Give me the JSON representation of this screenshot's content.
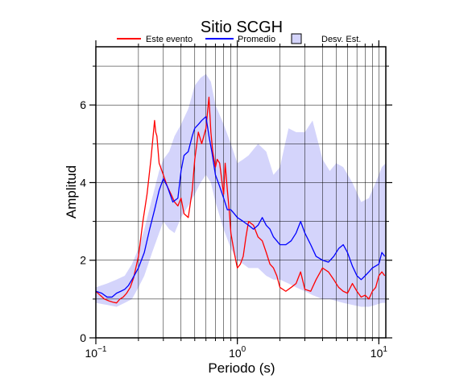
{
  "chart_data": {
    "type": "line",
    "title": "Sitio SCGH",
    "xlabel": "Periodo (s)",
    "ylabel": "Amplitud",
    "x_scale": "log",
    "xlim": [
      0.1,
      11.2
    ],
    "ylim": [
      0,
      7.5
    ],
    "grid": true,
    "legend_position": "top",
    "x_ticks": [
      {
        "value": 0.1,
        "base": "10",
        "exp": "−1"
      },
      {
        "value": 1,
        "label": "10",
        "exp": "0"
      },
      {
        "value": 10,
        "label": "10",
        "exp": "1"
      }
    ],
    "y_ticks": [
      0,
      2,
      4,
      6
    ],
    "legend": [
      {
        "label": "Este evento",
        "kind": "line",
        "color": "#ff0000"
      },
      {
        "label": "Promedio",
        "kind": "line",
        "color": "#0000ff"
      },
      {
        "label": "Desv. Est.",
        "kind": "box",
        "color": "#d4d4fb"
      }
    ],
    "series": [
      {
        "name": "Este evento",
        "color": "#ff0000",
        "x": [
          0.1,
          0.107,
          0.115,
          0.124,
          0.132,
          0.14,
          0.148,
          0.156,
          0.165,
          0.175,
          0.185,
          0.2,
          0.215,
          0.23,
          0.245,
          0.26,
          0.265,
          0.27,
          0.28,
          0.3,
          0.32,
          0.34,
          0.36,
          0.38,
          0.4,
          0.42,
          0.45,
          0.48,
          0.5,
          0.53,
          0.56,
          0.6,
          0.63,
          0.65,
          0.67,
          0.7,
          0.72,
          0.75,
          0.78,
          0.8,
          0.82,
          0.85,
          0.88,
          0.9,
          0.95,
          1.0,
          1.05,
          1.1,
          1.15,
          1.2,
          1.3,
          1.4,
          1.5,
          1.6,
          1.7,
          1.8,
          1.9,
          2.0,
          2.2,
          2.4,
          2.6,
          2.8,
          3.0,
          3.3,
          3.6,
          4.0,
          4.4,
          4.8,
          5.2,
          5.6,
          6.0,
          6.5,
          7.0,
          7.5,
          8.0,
          8.5,
          9.0,
          9.5,
          10.0,
          10.5,
          11.0
        ],
        "values": [
          1.2,
          1.1,
          1.0,
          0.95,
          0.92,
          0.9,
          1.0,
          1.05,
          1.15,
          1.3,
          1.55,
          2.1,
          3.0,
          3.7,
          4.6,
          5.6,
          5.3,
          5.2,
          4.5,
          4.2,
          3.9,
          3.7,
          3.5,
          3.4,
          3.6,
          3.2,
          3.1,
          3.8,
          4.6,
          5.3,
          5.0,
          5.4,
          6.2,
          5.3,
          4.8,
          4.4,
          4.6,
          4.5,
          4.0,
          3.7,
          4.5,
          3.8,
          3.2,
          2.7,
          2.2,
          1.8,
          1.9,
          2.1,
          2.6,
          3.0,
          2.9,
          2.6,
          2.5,
          2.2,
          1.9,
          1.8,
          1.6,
          1.3,
          1.2,
          1.3,
          1.4,
          1.7,
          1.25,
          1.2,
          1.5,
          1.8,
          1.7,
          1.5,
          1.3,
          1.2,
          1.15,
          1.4,
          1.2,
          1.05,
          1.1,
          1.0,
          1.2,
          1.3,
          1.6,
          1.7,
          1.6
        ]
      },
      {
        "name": "Promedio",
        "color": "#0000ff",
        "x": [
          0.1,
          0.11,
          0.12,
          0.13,
          0.14,
          0.15,
          0.16,
          0.17,
          0.18,
          0.2,
          0.22,
          0.24,
          0.26,
          0.28,
          0.3,
          0.32,
          0.35,
          0.38,
          0.4,
          0.42,
          0.45,
          0.48,
          0.5,
          0.53,
          0.56,
          0.6,
          0.63,
          0.66,
          0.7,
          0.75,
          0.8,
          0.85,
          0.9,
          0.95,
          1.0,
          1.1,
          1.2,
          1.3,
          1.4,
          1.5,
          1.6,
          1.7,
          1.8,
          1.9,
          2.0,
          2.2,
          2.4,
          2.6,
          2.8,
          3.0,
          3.3,
          3.6,
          4.0,
          4.4,
          4.8,
          5.2,
          5.6,
          6.0,
          6.5,
          7.0,
          7.5,
          8.0,
          8.5,
          9.0,
          10.0,
          10.5,
          11.0
        ],
        "values": [
          1.2,
          1.15,
          1.05,
          1.05,
          1.15,
          1.2,
          1.25,
          1.35,
          1.5,
          1.8,
          2.2,
          2.8,
          3.3,
          3.8,
          4.1,
          3.9,
          3.5,
          3.6,
          4.3,
          4.7,
          4.8,
          5.2,
          5.4,
          5.5,
          5.6,
          5.7,
          5.2,
          4.8,
          4.2,
          3.9,
          3.6,
          3.3,
          3.3,
          3.2,
          3.1,
          3.0,
          2.9,
          2.8,
          2.9,
          3.1,
          2.9,
          2.8,
          2.6,
          2.5,
          2.4,
          2.4,
          2.5,
          2.7,
          3.0,
          2.7,
          2.4,
          2.1,
          2.0,
          1.95,
          2.1,
          2.3,
          2.4,
          2.2,
          1.85,
          1.6,
          1.5,
          1.6,
          1.7,
          1.8,
          1.9,
          2.2,
          2.1
        ]
      }
    ],
    "std_band": {
      "name": "Desv. Est.",
      "color": "#d4d4fb",
      "x": [
        0.1,
        0.12,
        0.14,
        0.16,
        0.18,
        0.2,
        0.22,
        0.25,
        0.28,
        0.3,
        0.33,
        0.36,
        0.4,
        0.45,
        0.5,
        0.55,
        0.6,
        0.65,
        0.7,
        0.8,
        0.9,
        1.0,
        1.1,
        1.2,
        1.4,
        1.6,
        1.8,
        2.0,
        2.3,
        2.6,
        3.0,
        3.4,
        4.0,
        4.5,
        5.0,
        5.6,
        6.5,
        7.5,
        8.5,
        9.5,
        10.5,
        11.2
      ],
      "upper": [
        1.3,
        1.4,
        1.5,
        1.6,
        1.9,
        2.3,
        2.8,
        3.6,
        4.3,
        4.6,
        4.8,
        5.2,
        5.5,
        5.9,
        6.5,
        6.7,
        6.8,
        6.6,
        6.0,
        5.5,
        5.0,
        4.5,
        4.6,
        4.7,
        5.0,
        4.8,
        4.2,
        4.4,
        5.4,
        5.3,
        5.3,
        5.6,
        4.6,
        4.3,
        4.5,
        4.4,
        4.0,
        3.5,
        3.6,
        4.0,
        4.4,
        4.5
      ],
      "lower": [
        0.9,
        0.85,
        0.8,
        0.9,
        1.0,
        1.3,
        1.6,
        2.2,
        2.7,
        3.0,
        2.8,
        2.7,
        3.1,
        3.4,
        3.7,
        4.0,
        4.2,
        4.0,
        3.5,
        2.8,
        2.3,
        2.0,
        1.9,
        1.8,
        1.8,
        1.6,
        1.5,
        1.5,
        1.4,
        1.3,
        1.2,
        1.1,
        1.0,
        1.0,
        0.95,
        0.9,
        0.85,
        0.8,
        0.8,
        0.85,
        0.9,
        0.9
      ]
    },
    "colors": {
      "band": "#d4d4fb",
      "grid": "#000000",
      "frame": "#000000"
    }
  }
}
